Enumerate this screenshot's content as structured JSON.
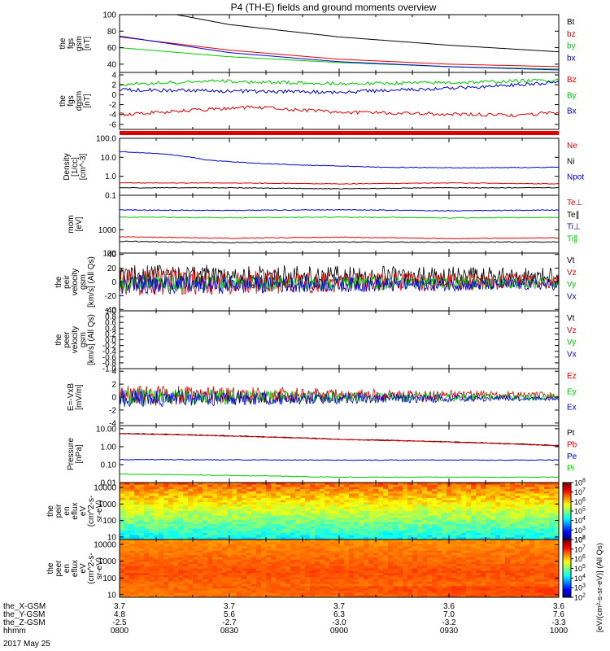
{
  "title": "P4 (TH-E) fields and ground moments overview",
  "date_label": "2017 May 25",
  "colorbar_label": "[eV/(cm²-s-sr-eV)] (All Qs)",
  "colorbar_label_2": "[eV/(cm²-s-sr-eV)]",
  "colors": {
    "black": "#000000",
    "red": "#e00000",
    "green": "#00c800",
    "blue": "#0000d0"
  },
  "chart_data": [
    {
      "type": "line",
      "id": "fgs",
      "ylabel": [
        "the",
        "fgs",
        "gsm",
        "[nT]"
      ],
      "ylim": [
        30,
        100
      ],
      "log": false,
      "yticks": [
        {
          "v": 40,
          "t": "40"
        },
        {
          "v": 60,
          "t": "60"
        },
        {
          "v": 80,
          "t": "80"
        },
        {
          "v": 100,
          "t": "100"
        }
      ],
      "series": [
        {
          "name": "Bt",
          "color": "black",
          "x": [
            0,
            0.25,
            0.5,
            0.75,
            1
          ],
          "y": [
            113,
            88,
            73,
            63,
            55
          ]
        },
        {
          "name": "bz",
          "color": "red",
          "x": [
            0,
            0.25,
            0.5,
            0.75,
            1
          ],
          "y": [
            73,
            57,
            46,
            40,
            37
          ]
        },
        {
          "name": "by",
          "color": "green",
          "x": [
            0,
            0.25,
            0.5,
            0.75,
            1
          ],
          "y": [
            60,
            49,
            42,
            37,
            34
          ]
        },
        {
          "name": "bx",
          "color": "blue",
          "x": [
            0,
            0.25,
            0.5,
            0.75,
            1
          ],
          "y": [
            74,
            54,
            43,
            37,
            33
          ]
        }
      ]
    },
    {
      "type": "line",
      "id": "fgs_dgsm",
      "ylabel": [
        "the",
        "fgs",
        "dgsm",
        "[nT]"
      ],
      "ylim": [
        -7,
        4.5
      ],
      "log": false,
      "yticks": [
        {
          "v": -6,
          "t": "-6"
        },
        {
          "v": -4,
          "t": "-4"
        },
        {
          "v": -2,
          "t": "-2"
        },
        {
          "v": 0,
          "t": "0"
        },
        {
          "v": 2,
          "t": "2"
        },
        {
          "v": 4,
          "t": "4"
        }
      ],
      "series": [
        {
          "name": "Bz",
          "color": "red",
          "x": [
            0,
            0.1,
            0.3,
            0.5,
            0.7,
            0.9,
            1
          ],
          "y": [
            -4,
            -3.5,
            -2.5,
            -3.5,
            -3.8,
            -4.2,
            -3.5
          ]
        },
        {
          "name": "By",
          "color": "green",
          "x": [
            0,
            0.2,
            0.5,
            0.8,
            1
          ],
          "y": [
            2,
            2.8,
            2.2,
            2.5,
            3
          ]
        },
        {
          "name": "Bx",
          "color": "blue",
          "x": [
            0,
            0.2,
            0.5,
            0.8,
            1
          ],
          "y": [
            1,
            0.8,
            0.5,
            1.5,
            2.5
          ]
        }
      ]
    },
    {
      "type": "line",
      "id": "density",
      "ylabel": [
        "Density",
        "[1/cc]",
        "[cm^-3]"
      ],
      "ylim": [
        0.1,
        100
      ],
      "log": true,
      "yticks": [
        {
          "v": 0.1,
          "t": "0.1"
        },
        {
          "v": 1,
          "t": "1.0"
        },
        {
          "v": 10,
          "t": "10.0"
        },
        {
          "v": 100,
          "t": "100.0"
        }
      ],
      "series": [
        {
          "name": "Ne",
          "color": "red",
          "x": [
            0,
            0.25,
            0.5,
            0.75,
            1
          ],
          "y": [
            0.45,
            0.45,
            0.4,
            0.45,
            0.4
          ]
        },
        {
          "name": "Ni",
          "color": "black",
          "x": [
            0,
            0.25,
            0.5,
            0.75,
            1
          ],
          "y": [
            0.25,
            0.25,
            0.22,
            0.25,
            0.25
          ]
        },
        {
          "name": "Npot",
          "color": "blue",
          "x": [
            0,
            0.1,
            0.2,
            0.3,
            0.4,
            0.6,
            0.8,
            1
          ],
          "y": [
            20,
            15,
            7,
            5,
            4,
            3,
            2.8,
            3
          ]
        }
      ]
    },
    {
      "type": "line",
      "id": "mom",
      "ylabel": [
        "mom",
        "[eV]"
      ],
      "ylim": [
        100,
        30000
      ],
      "log": true,
      "yticks": [
        {
          "v": 100,
          "t": "100"
        },
        {
          "v": 1000,
          "t": "1000"
        }
      ],
      "series": [
        {
          "name": "Te⊥",
          "color": "red",
          "x": [
            0,
            0.25,
            0.5,
            0.75,
            1
          ],
          "y": [
            500,
            430,
            480,
            420,
            450
          ]
        },
        {
          "name": "Te∥",
          "color": "black",
          "x": [
            0,
            0.25,
            0.5,
            0.75,
            1
          ],
          "y": [
            320,
            280,
            300,
            290,
            300
          ]
        },
        {
          "name": "Ti⊥",
          "color": "blue",
          "x": [
            0,
            0.25,
            0.5,
            0.75,
            1
          ],
          "y": [
            7000,
            6800,
            7200,
            6500,
            7000
          ]
        },
        {
          "name": "Ti∥",
          "color": "green",
          "x": [
            0,
            0.25,
            0.5,
            0.75,
            1
          ],
          "y": [
            3500,
            3300,
            3500,
            3200,
            3400
          ]
        }
      ]
    },
    {
      "type": "line",
      "id": "peir_vel",
      "ylabel": [
        "the",
        "peir",
        "velocity",
        "gsm",
        "[km/s] (All Qs)"
      ],
      "ylim": [
        -42,
        42
      ],
      "log": false,
      "noise": true,
      "yticks": [
        {
          "v": -40,
          "t": "-40"
        },
        {
          "v": -20,
          "t": "-20"
        },
        {
          "v": 0,
          "t": "0"
        },
        {
          "v": 20,
          "t": "20"
        },
        {
          "v": 40,
          "t": "40"
        }
      ],
      "series": [
        {
          "name": "Vt",
          "color": "black",
          "amp": [
            18,
            13
          ],
          "base": 8
        },
        {
          "name": "Vz",
          "color": "red",
          "amp": [
            20,
            11
          ],
          "base": 0
        },
        {
          "name": "Vy",
          "color": "green",
          "amp": [
            12,
            8
          ],
          "base": -2
        },
        {
          "name": "Vx",
          "color": "blue",
          "amp": [
            14,
            8
          ],
          "base": -4
        }
      ]
    },
    {
      "type": "line",
      "id": "peer_vel",
      "ylabel": [
        "the",
        "peer",
        "velocity",
        "gsm",
        "[km/s] (All Qs)"
      ],
      "ylim": [
        -1,
        1
      ],
      "log": false,
      "yticks": [
        {
          "v": -1,
          "t": "-1.0"
        },
        {
          "v": -0.8,
          "t": "-0.8"
        },
        {
          "v": -0.6,
          "t": "-0.6"
        },
        {
          "v": -0.4,
          "t": "-0.4"
        },
        {
          "v": -0.2,
          "t": "-0.2"
        },
        {
          "v": 0,
          "t": "0.0"
        },
        {
          "v": 0.2,
          "t": "0.2"
        },
        {
          "v": 0.4,
          "t": "0.4"
        },
        {
          "v": 0.6,
          "t": "0.6"
        },
        {
          "v": 0.8,
          "t": "0.8"
        },
        {
          "v": 1,
          "t": "1.0"
        }
      ],
      "series": [
        {
          "name": "Vt",
          "color": "black"
        },
        {
          "name": "Vz",
          "color": "red"
        },
        {
          "name": "Vy",
          "color": "green"
        },
        {
          "name": "Vx",
          "color": "blue"
        }
      ]
    },
    {
      "type": "line",
      "id": "efield",
      "ylabel": [
        "E=-VxB",
        "[mV/m]"
      ],
      "ylim": [
        -4.4,
        4.4
      ],
      "log": false,
      "noise": true,
      "yticks": [
        {
          "v": -4,
          "t": "-4"
        },
        {
          "v": -2,
          "t": "-2"
        },
        {
          "v": 0,
          "t": "0"
        },
        {
          "v": 2,
          "t": "2"
        },
        {
          "v": 4,
          "t": "4"
        }
      ],
      "series": [
        {
          "name": "Ez",
          "color": "red",
          "amp": [
            1.6,
            0.5
          ],
          "base": 0.3
        },
        {
          "name": "Ey",
          "color": "green",
          "amp": [
            1.4,
            0.4
          ],
          "base": 0
        },
        {
          "name": "Ex",
          "color": "blue",
          "amp": [
            1.4,
            0.3
          ],
          "base": -0.2
        }
      ]
    },
    {
      "type": "line",
      "id": "pressure",
      "ylabel": [
        "Pressure",
        "[nPa]"
      ],
      "ylim": [
        0.01,
        15
      ],
      "log": true,
      "yticks": [
        {
          "v": 0.01,
          "t": "0.01"
        },
        {
          "v": 0.1,
          "t": "0.10"
        },
        {
          "v": 1,
          "t": "1.00"
        },
        {
          "v": 10,
          "t": "10.00"
        }
      ],
      "series": [
        {
          "name": "Pt",
          "color": "black",
          "x": [
            0,
            0.5,
            1
          ],
          "y": [
            5.5,
            2.6,
            1.15
          ]
        },
        {
          "name": "Pb",
          "color": "red",
          "x": [
            0,
            0.5,
            1
          ],
          "y": [
            5.3,
            2.5,
            1.1
          ]
        },
        {
          "name": "Pe",
          "color": "blue",
          "x": [
            0,
            0.5,
            1
          ],
          "y": [
            0.19,
            0.18,
            0.18
          ]
        },
        {
          "name": "Pi",
          "color": "green",
          "x": [
            0,
            0.5,
            1
          ],
          "y": [
            0.03,
            0.02,
            0.02
          ]
        }
      ]
    },
    {
      "type": "heatmap",
      "id": "peir_en",
      "ylabel": [
        "the",
        "peir",
        "en",
        "eflux",
        "eV",
        "(cm^2-s-",
        "sr-eV)"
      ],
      "ylim": [
        7,
        20000
      ],
      "log": true,
      "yticks": [
        {
          "v": 10,
          "t": "10"
        },
        {
          "v": 100,
          "t": "100"
        },
        {
          "v": 1000,
          "t": "1000"
        },
        {
          "v": 10000,
          "t": "10000"
        }
      ],
      "zlim_exp": [
        2,
        8
      ]
    },
    {
      "type": "heatmap",
      "id": "peer_en",
      "ylabel": [
        "the",
        "peer",
        "en",
        "eflux",
        "eV",
        "(cm^2-s-",
        "sr-eV)"
      ],
      "ylim": [
        7,
        20000
      ],
      "log": true,
      "yticks": [
        {
          "v": 10,
          "t": "10"
        },
        {
          "v": 100,
          "t": "100"
        },
        {
          "v": 1000,
          "t": "1000"
        },
        {
          "v": 10000,
          "t": "10000"
        }
      ],
      "zlim_exp": [
        2,
        8
      ]
    }
  ],
  "bottom_axis": {
    "row_labels": [
      "the_X-GSM",
      "the_Y-GSM",
      "the_Z-GSM",
      "hhmm"
    ],
    "columns": [
      {
        "values": [
          "3.7",
          "4.8",
          "-2.5",
          "0800"
        ]
      },
      {
        "values": [
          "3.7",
          "5.6",
          "-2.7",
          "0830"
        ]
      },
      {
        "values": [
          "3.7",
          "6.3",
          "-3.0",
          "0900"
        ]
      },
      {
        "values": [
          "3.6",
          "7.0",
          "-3.2",
          "0930"
        ]
      },
      {
        "values": [
          "3.6",
          "7.6",
          "-3.3",
          "1000"
        ]
      }
    ]
  }
}
